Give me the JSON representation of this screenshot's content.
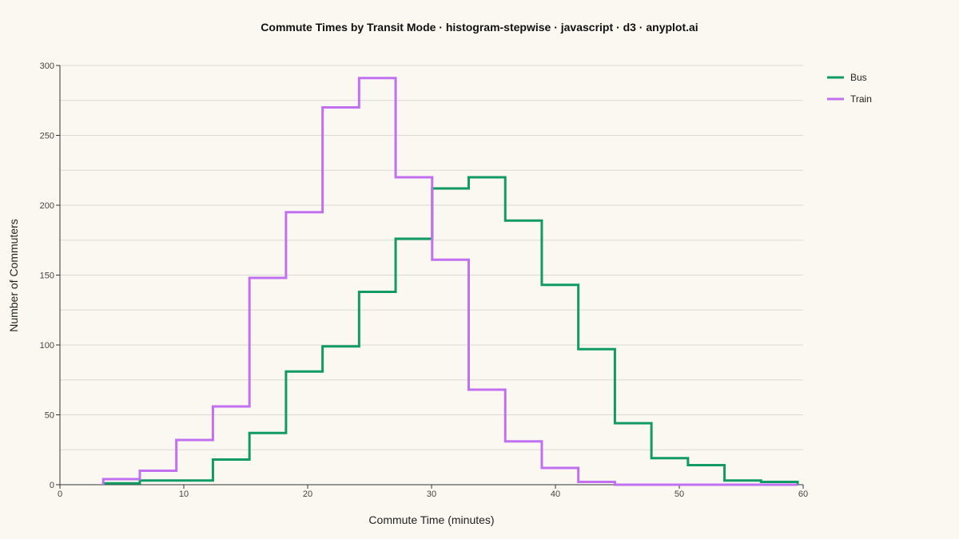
{
  "chart_data": {
    "type": "histogram-step",
    "title": "Commute Times by Transit Mode · histogram-stepwise · javascript · d3 · anyplot.ai",
    "xlabel": "Commute Time (minutes)",
    "ylabel": "Number of Commuters",
    "xlim": [
      0,
      60
    ],
    "ylim": [
      0,
      300
    ],
    "x_ticks": [
      0,
      10,
      20,
      30,
      40,
      50,
      60
    ],
    "y_ticks": [
      0,
      50,
      100,
      150,
      200,
      250,
      300
    ],
    "grid": "horizontal",
    "legend_position": "top-right",
    "bin_edges": [
      3.5,
      6.45,
      9.4,
      12.35,
      15.3,
      18.25,
      21.2,
      24.15,
      27.1,
      30.05,
      33.0,
      35.95,
      38.9,
      41.85,
      44.8,
      47.75,
      50.7,
      53.65,
      56.6,
      59.55
    ],
    "series": [
      {
        "name": "Bus",
        "color": "#119966",
        "values": [
          1,
          3,
          3,
          18,
          37,
          81,
          99,
          138,
          176,
          212,
          220,
          189,
          143,
          97,
          44,
          19,
          14,
          3,
          2
        ]
      },
      {
        "name": "Train",
        "color": "#C070F0",
        "values": [
          4,
          10,
          32,
          56,
          148,
          195,
          270,
          291,
          220,
          161,
          68,
          31,
          12,
          2,
          0,
          0,
          0,
          0,
          0
        ]
      }
    ]
  }
}
